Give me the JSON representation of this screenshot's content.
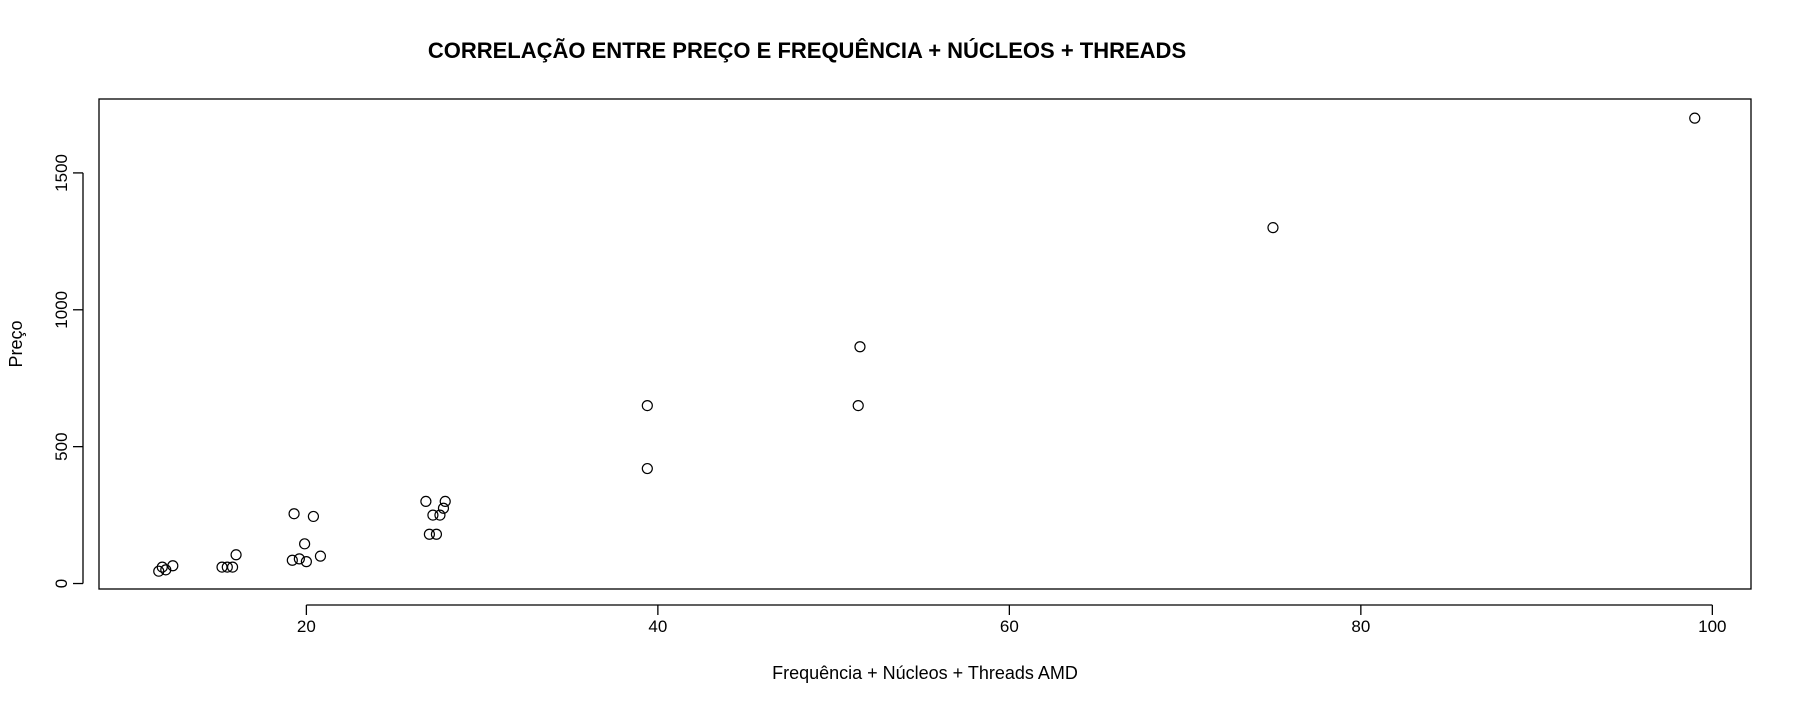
{
  "chart_data": {
    "type": "scatter",
    "title": "CORRELAÇÃO ENTRE PREÇO E  FREQUÊNCIA + NÚCLEOS + THREADS",
    "xlabel": "Frequência + Núcleos + Threads AMD",
    "ylabel": "Preço",
    "xlim": [
      8.2,
      102.2
    ],
    "ylim": [
      -20,
      1770
    ],
    "xticks": [
      20,
      40,
      60,
      80,
      100
    ],
    "yticks": [
      0,
      500,
      1000,
      1500
    ],
    "grid": false,
    "legend": "none",
    "marker": "open-circle",
    "points": [
      {
        "x": 11.6,
        "y": 45
      },
      {
        "x": 11.8,
        "y": 60
      },
      {
        "x": 12.0,
        "y": 50
      },
      {
        "x": 12.4,
        "y": 65
      },
      {
        "x": 15.2,
        "y": 60
      },
      {
        "x": 15.5,
        "y": 60
      },
      {
        "x": 15.8,
        "y": 60
      },
      {
        "x": 16.0,
        "y": 105
      },
      {
        "x": 19.2,
        "y": 85
      },
      {
        "x": 19.3,
        "y": 255
      },
      {
        "x": 19.6,
        "y": 90
      },
      {
        "x": 19.9,
        "y": 145
      },
      {
        "x": 20.0,
        "y": 80
      },
      {
        "x": 20.4,
        "y": 245
      },
      {
        "x": 20.8,
        "y": 100
      },
      {
        "x": 26.8,
        "y": 300
      },
      {
        "x": 27.0,
        "y": 180
      },
      {
        "x": 27.2,
        "y": 250
      },
      {
        "x": 27.4,
        "y": 180
      },
      {
        "x": 27.6,
        "y": 250
      },
      {
        "x": 27.8,
        "y": 275
      },
      {
        "x": 27.9,
        "y": 300
      },
      {
        "x": 39.4,
        "y": 420
      },
      {
        "x": 39.4,
        "y": 650
      },
      {
        "x": 51.4,
        "y": 650
      },
      {
        "x": 51.5,
        "y": 865
      },
      {
        "x": 75.0,
        "y": 1300
      },
      {
        "x": 99.0,
        "y": 1700
      }
    ]
  }
}
